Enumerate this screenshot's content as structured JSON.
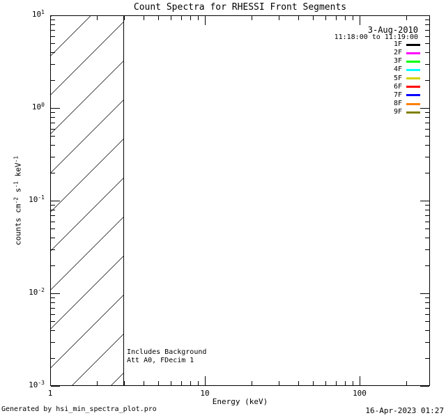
{
  "title": "Count Spectra for RHESSI Front Segments",
  "legend": {
    "date": "3-Aug-2010",
    "time_range": "11:18:00 to 11:19:00",
    "entries": [
      {
        "label": "1F",
        "color": "#000000"
      },
      {
        "label": "2F",
        "color": "#ff00ff"
      },
      {
        "label": "3F",
        "color": "#00ff00"
      },
      {
        "label": "4F",
        "color": "#00ffff"
      },
      {
        "label": "5F",
        "color": "#d4d400"
      },
      {
        "label": "6F",
        "color": "#ff0000"
      },
      {
        "label": "7F",
        "color": "#0000ff"
      },
      {
        "label": "8F",
        "color": "#ff8000"
      },
      {
        "label": "9F",
        "color": "#808000"
      }
    ]
  },
  "annotations": {
    "background_note": "Includes Background",
    "attenuator_note": "Att A0, FDecim 1"
  },
  "footer": {
    "generator": "Generated by hsi_min_spectra_plot.pro",
    "timestamp": "16-Apr-2023 01:27"
  },
  "chart_data": {
    "type": "line",
    "title": "Count Spectra for RHESSI Front Segments",
    "xlabel": "Energy (keV)",
    "ylabel": "counts cm^-2 s^-1 keV^-1",
    "ylabel_segments": [
      {
        "t": "counts cm"
      },
      {
        "sup": "-2"
      },
      {
        "t": " s"
      },
      {
        "sup": "-1"
      },
      {
        "t": " keV"
      },
      {
        "sup": "-1"
      }
    ],
    "x_scale": "log",
    "y_scale": "log",
    "xlim": [
      1,
      284
    ],
    "ylim": [
      0.001,
      10
    ],
    "grid": false,
    "legend_position": "top-right",
    "x_ticks": [
      {
        "v": 1,
        "label": "1"
      },
      {
        "v": 10,
        "label": "10"
      },
      {
        "v": 100,
        "label": "100"
      }
    ],
    "y_ticks": [
      {
        "v": 10,
        "base": "10",
        "exp": "1"
      },
      {
        "v": 1,
        "base": "10",
        "exp": "0"
      },
      {
        "v": 0.1,
        "base": "10",
        "exp": "-1"
      },
      {
        "v": 0.01,
        "base": "10",
        "exp": "-2"
      },
      {
        "v": 0.001,
        "base": "10",
        "exp": "-3"
      }
    ],
    "hatch_region": {
      "x_from": 1,
      "x_to": 3,
      "style": "diagonal-hatch"
    },
    "series": [
      {
        "name": "1F",
        "color": "#000000",
        "values": []
      },
      {
        "name": "2F",
        "color": "#ff00ff",
        "values": []
      },
      {
        "name": "3F",
        "color": "#00ff00",
        "values": []
      },
      {
        "name": "4F",
        "color": "#00ffff",
        "values": []
      },
      {
        "name": "5F",
        "color": "#d4d400",
        "values": []
      },
      {
        "name": "6F",
        "color": "#ff0000",
        "values": []
      },
      {
        "name": "7F",
        "color": "#0000ff",
        "values": []
      },
      {
        "name": "8F",
        "color": "#ff8000",
        "values": []
      },
      {
        "name": "9F",
        "color": "#808000",
        "values": []
      }
    ]
  }
}
